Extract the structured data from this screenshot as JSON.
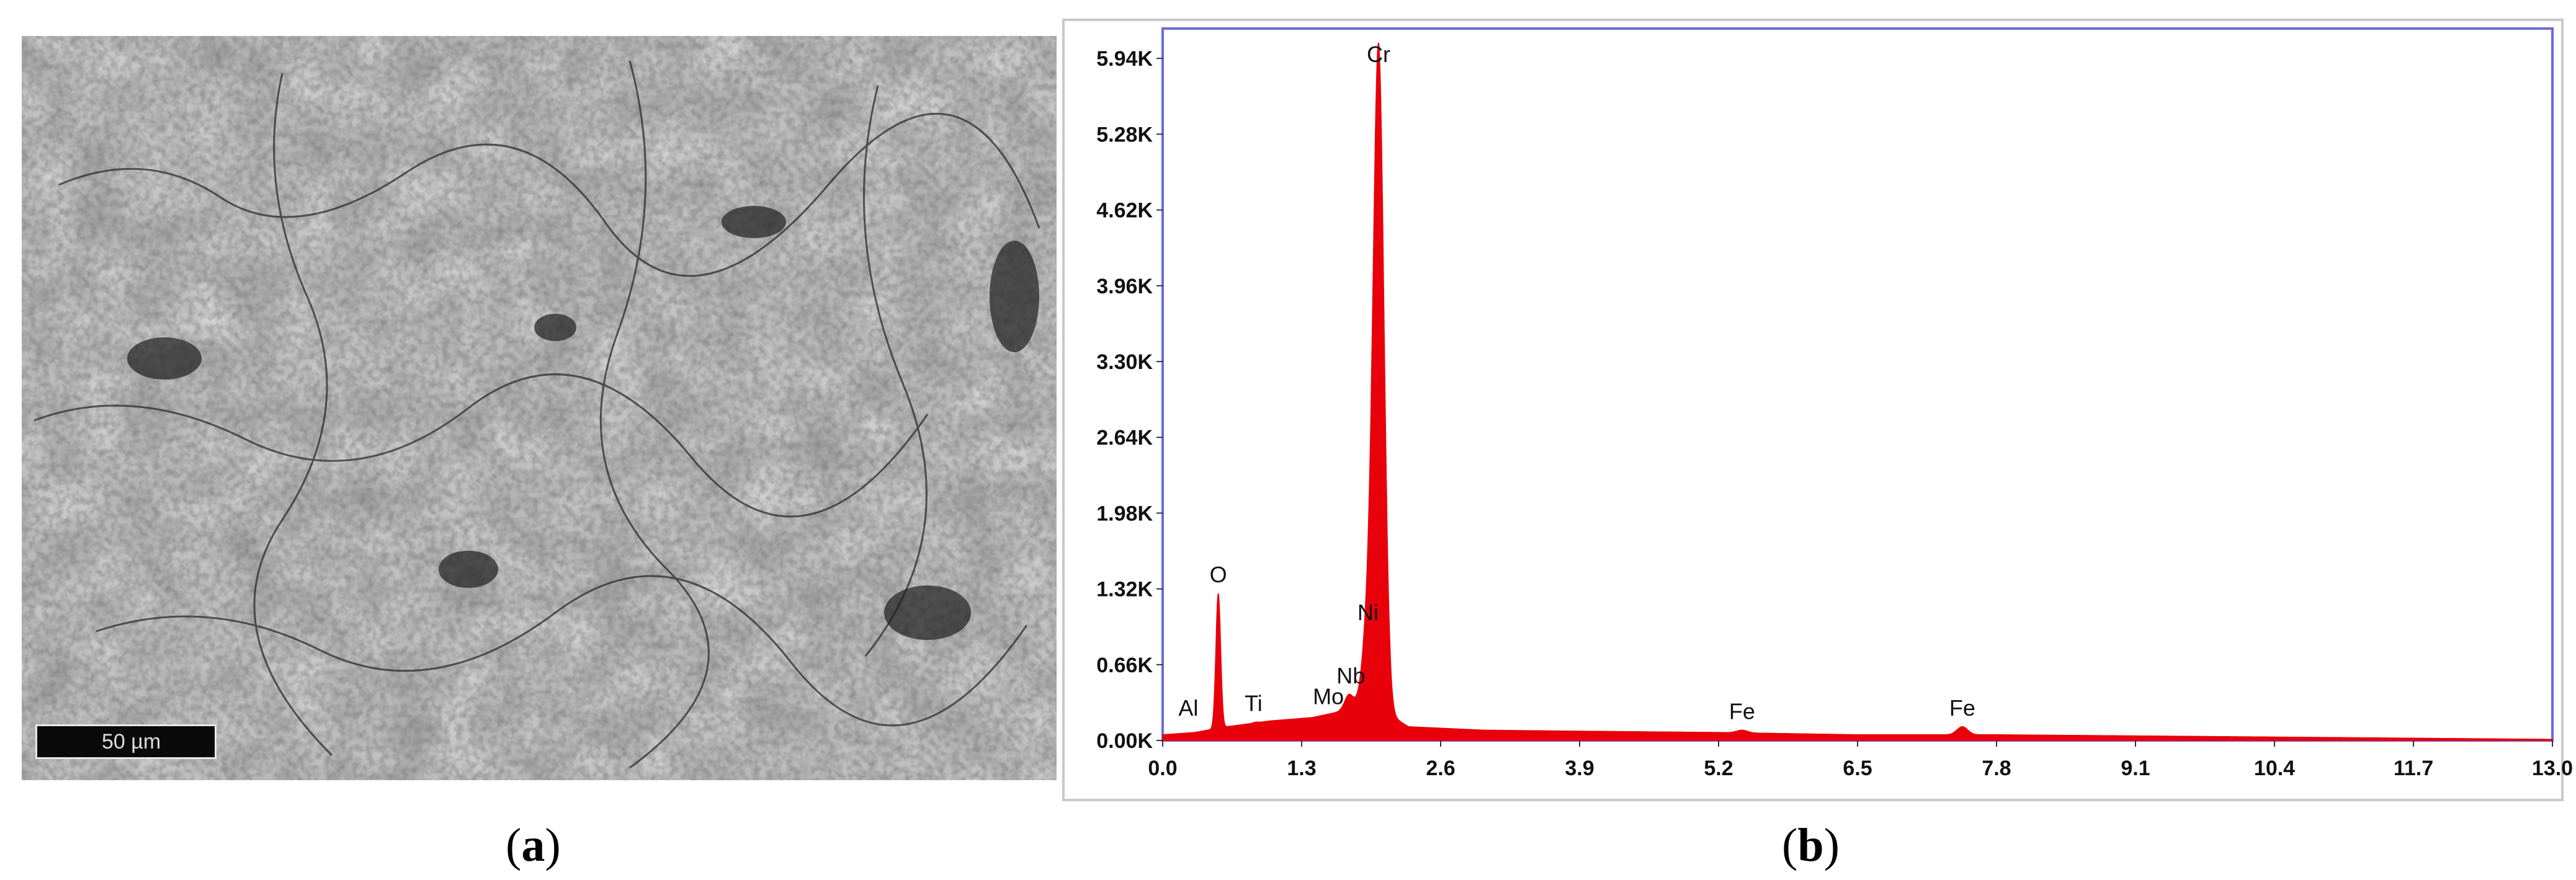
{
  "figure": {
    "panel_a": {
      "caption_letter": "a",
      "scale_bar_label": "50 µm"
    },
    "panel_b": {
      "caption_letter": "b"
    }
  },
  "colors": {
    "spectrum_fill": "#e8000b",
    "frame": "#6b6bd6",
    "micrograph_base": "#9a9a9a"
  },
  "chart_data": {
    "type": "area",
    "title": "",
    "xlabel": "",
    "ylabel": "",
    "xlim": [
      0.0,
      13.0
    ],
    "ylim": [
      0.0,
      6.2
    ],
    "x_ticks": [
      "0.0",
      "1.3",
      "2.6",
      "3.9",
      "5.2",
      "6.5",
      "7.8",
      "9.1",
      "10.4",
      "11.7",
      "13.0"
    ],
    "y_ticks": [
      "0.00K",
      "0.66K",
      "1.32K",
      "1.98K",
      "2.64K",
      "3.30K",
      "3.96K",
      "4.62K",
      "5.28K",
      "5.94K"
    ],
    "grid": false,
    "baseline": [
      [
        0.0,
        0.05
      ],
      [
        0.3,
        0.07
      ],
      [
        0.6,
        0.12
      ],
      [
        1.0,
        0.17
      ],
      [
        1.4,
        0.2
      ],
      [
        1.7,
        0.26
      ],
      [
        1.9,
        0.35
      ],
      [
        2.3,
        0.12
      ],
      [
        3.0,
        0.09
      ],
      [
        4.0,
        0.08
      ],
      [
        5.2,
        0.07
      ],
      [
        6.5,
        0.05
      ],
      [
        7.8,
        0.05
      ],
      [
        9.1,
        0.04
      ],
      [
        10.4,
        0.03
      ],
      [
        11.7,
        0.02
      ],
      [
        13.0,
        0.01
      ]
    ],
    "peaks": [
      {
        "label": "Al",
        "x": 1.49,
        "y": 0.12,
        "label_x": 0.24
      },
      {
        "label": "O",
        "x": 0.52,
        "y": 1.28
      },
      {
        "label": "Ti",
        "x": 0.87,
        "y": 0.16,
        "label_x": 0.85
      },
      {
        "label": "Mo",
        "x": 1.62,
        "y": 0.22,
        "label_x": 1.55
      },
      {
        "label": "Nb",
        "x": 1.74,
        "y": 0.4,
        "label_x": 1.76
      },
      {
        "label": "Ni",
        "x": 1.92,
        "y": 0.95,
        "label_x": 1.92
      },
      {
        "label": "Cr",
        "x": 2.02,
        "y": 5.99
      },
      {
        "label": "Fe",
        "x": 5.42,
        "y": 0.09
      },
      {
        "label": "Fe",
        "x": 7.48,
        "y": 0.12
      }
    ]
  }
}
